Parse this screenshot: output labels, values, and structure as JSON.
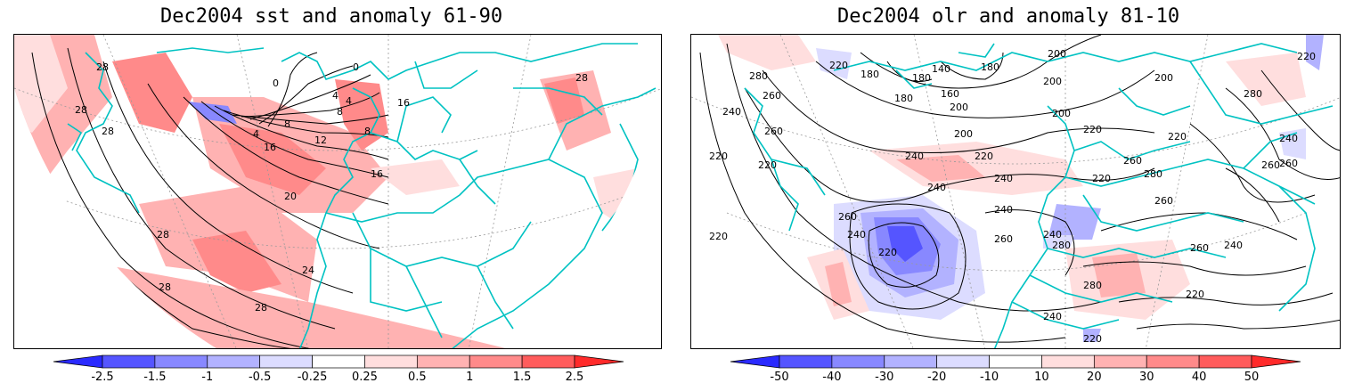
{
  "panels": [
    {
      "title": "Dec2004 sst and anomaly 61-90",
      "colorbar": {
        "colors": [
          "#2a2aff",
          "#5555ff",
          "#8888ff",
          "#b2b2ff",
          "#dcdcff",
          "#ffffff",
          "#ffdede",
          "#ffb2b2",
          "#ff8a8a",
          "#ff5c5c",
          "#ff2a2a"
        ],
        "ticks": [
          "-2.5",
          "-1.5",
          "-1",
          "-0.5",
          "-0.25",
          "0.25",
          "0.5",
          "1",
          "1.5",
          "2.5"
        ]
      },
      "contour_labels": [
        "28",
        "28",
        "28",
        "28",
        "28",
        "28",
        "28",
        "24",
        "20",
        "16",
        "16",
        "16",
        "12",
        "8",
        "8",
        "4",
        "4",
        "4",
        "0",
        "0",
        "8"
      ]
    },
    {
      "title": "Dec2004 olr and anomaly 81-10",
      "colorbar": {
        "colors": [
          "#2a2aff",
          "#5555ff",
          "#8888ff",
          "#b2b2ff",
          "#dcdcff",
          "#ffffff",
          "#ffdede",
          "#ffb2b2",
          "#ff8a8a",
          "#ff5c5c",
          "#ff2a2a"
        ],
        "ticks": [
          "-50",
          "-40",
          "-30",
          "-20",
          "-10",
          "10",
          "20",
          "30",
          "40",
          "50"
        ]
      },
      "contour_labels": [
        "260",
        "280",
        "260",
        "240",
        "220",
        "220",
        "220",
        "220",
        "180",
        "140",
        "180",
        "180",
        "200",
        "180",
        "200",
        "160",
        "200",
        "200",
        "200",
        "240",
        "220",
        "240",
        "240",
        "260",
        "240",
        "220",
        "220",
        "240",
        "220",
        "260",
        "260",
        "280",
        "260",
        "240",
        "240",
        "280",
        "260",
        "280",
        "240",
        "260",
        "220",
        "260",
        "220",
        "240",
        "220",
        "200",
        "220",
        "280"
      ]
    }
  ],
  "colors": {
    "coast": "#00c2c2",
    "contour": "#000000",
    "grid": "#9a9a9a"
  }
}
